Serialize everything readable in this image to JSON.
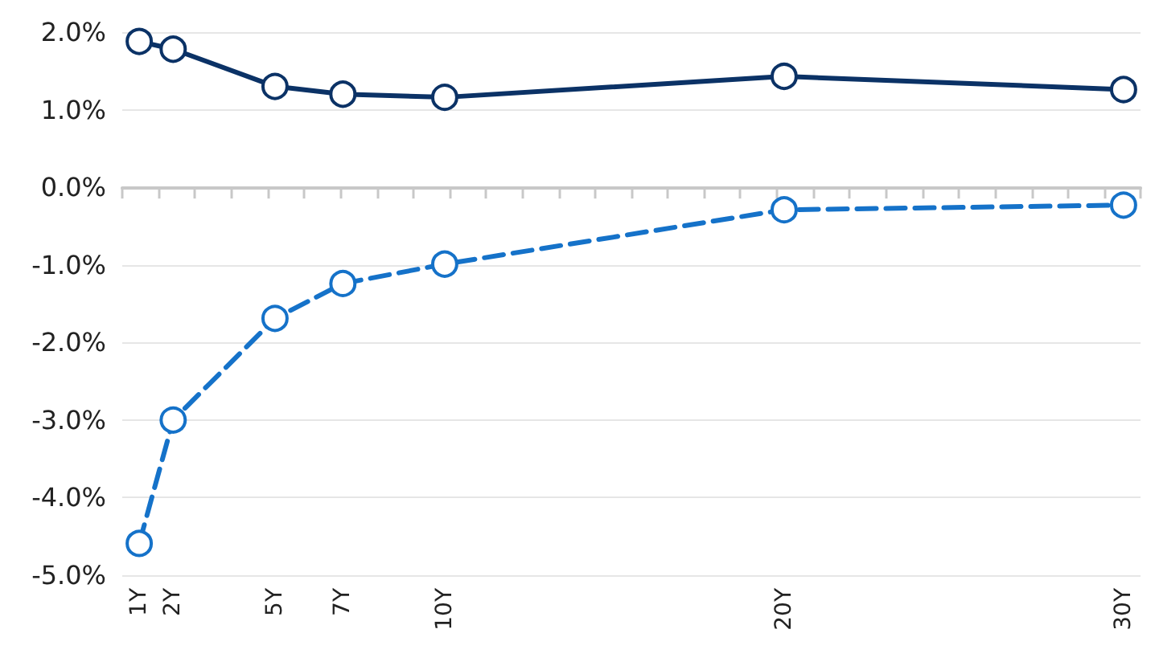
{
  "chart_data": {
    "type": "line",
    "x": [
      1,
      2,
      5,
      7,
      10,
      20,
      30
    ],
    "series": [
      {
        "color": "#0b3266",
        "line_style": "solid",
        "values": [
          1.88,
          1.78,
          1.3,
          1.2,
          1.16,
          1.43,
          1.26
        ]
      },
      {
        "color": "#1572c9",
        "line_style": "dashed",
        "values": [
          -4.59,
          -3.0,
          -1.69,
          -1.24,
          -0.99,
          -0.29,
          -0.23
        ]
      }
    ],
    "xlim": [
      0.5,
      30.5
    ],
    "xticks": [
      {
        "value": 1,
        "label": "1Y"
      },
      {
        "value": 2,
        "label": "2Y"
      },
      {
        "value": 5,
        "label": "5Y"
      },
      {
        "value": 7,
        "label": "7Y"
      },
      {
        "value": 10,
        "label": "10Y"
      },
      {
        "value": 20,
        "label": "20Y"
      },
      {
        "value": 30,
        "label": "30Y"
      },
      {
        "value": 0.5,
        "label": null
      },
      {
        "value": 1.57,
        "label": null
      },
      {
        "value": 2.64,
        "label": null
      },
      {
        "value": 3.71,
        "label": null
      },
      {
        "value": 4.79,
        "label": null
      },
      {
        "value": 5.86,
        "label": null
      },
      {
        "value": 6.93,
        "label": null
      },
      {
        "value": 8.0,
        "label": null
      },
      {
        "value": 9.07,
        "label": null
      },
      {
        "value": 10.14,
        "label": null
      },
      {
        "value": 11.21,
        "label": null
      },
      {
        "value": 12.29,
        "label": null
      },
      {
        "value": 13.36,
        "label": null
      },
      {
        "value": 14.43,
        "label": null
      },
      {
        "value": 15.5,
        "label": null
      },
      {
        "value": 16.57,
        "label": null
      },
      {
        "value": 17.64,
        "label": null
      },
      {
        "value": 18.71,
        "label": null
      },
      {
        "value": 19.79,
        "label": null
      },
      {
        "value": 20.86,
        "label": null
      },
      {
        "value": 21.93,
        "label": null
      },
      {
        "value": 23.0,
        "label": null
      },
      {
        "value": 24.07,
        "label": null
      },
      {
        "value": 25.14,
        "label": null
      },
      {
        "value": 26.21,
        "label": null
      },
      {
        "value": 27.29,
        "label": null
      },
      {
        "value": 28.36,
        "label": null
      },
      {
        "value": 29.43,
        "label": null
      },
      {
        "value": 30.5,
        "label": null
      }
    ],
    "ylim": [
      -5,
      2
    ],
    "yticks": [
      {
        "value": 2,
        "label": "2.0%"
      },
      {
        "value": 1,
        "label": "1.0%"
      },
      {
        "value": 0,
        "label": "0.0%"
      },
      {
        "value": -1,
        "label": "-1.0%"
      },
      {
        "value": -2,
        "label": "-2.0%"
      },
      {
        "value": -3,
        "label": "-3.0%"
      },
      {
        "value": -4,
        "label": "-4.0%"
      },
      {
        "value": -5,
        "label": "-5.0%"
      }
    ],
    "grid": "y",
    "marker": "circle"
  }
}
